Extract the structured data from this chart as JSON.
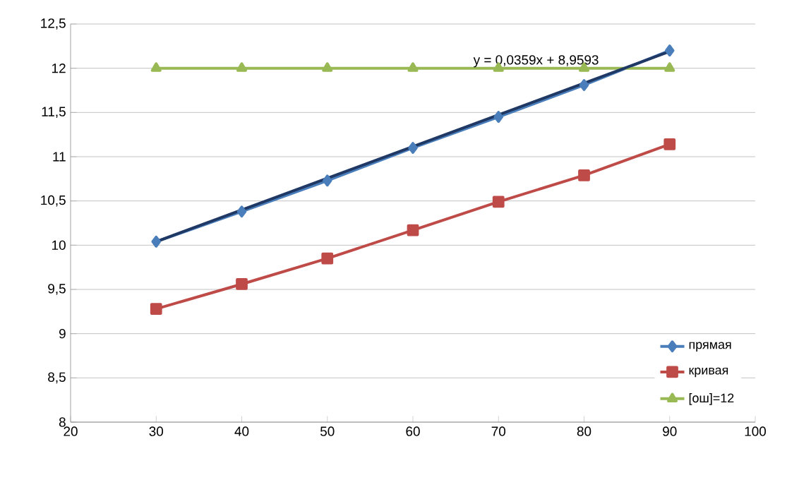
{
  "chart_data": {
    "type": "line",
    "xlim": [
      20,
      100
    ],
    "xticks": [
      20,
      30,
      40,
      50,
      60,
      70,
      80,
      90,
      100
    ],
    "ylim": [
      8,
      12.5
    ],
    "yticks": [
      8,
      {
        "value": 8.5,
        "label": "8,5"
      },
      9,
      {
        "value": 9.5,
        "label": "9,5"
      },
      10,
      {
        "value": 10.5,
        "label": "10,5"
      },
      11,
      {
        "value": 11.5,
        "label": "11,5"
      },
      12,
      {
        "value": 12.5,
        "label": "12,5"
      }
    ],
    "grid": "y",
    "legend": "bottom right",
    "series": [
      {
        "name": "прямая",
        "color": "#4a7ebb",
        "marker": "diamond",
        "x": [
          30,
          40,
          50,
          60,
          70,
          80,
          90
        ],
        "values": [
          10.04,
          10.38,
          10.73,
          11.1,
          11.45,
          11.81,
          12.2
        ]
      },
      {
        "name": "кривая",
        "color": "#be4b48",
        "marker": "square",
        "x": [
          30,
          40,
          50,
          60,
          70,
          80,
          90
        ],
        "values": [
          9.28,
          9.56,
          9.85,
          10.17,
          10.49,
          10.79,
          11.14
        ]
      },
      {
        "name": "[ош]=12",
        "color": "#98b954",
        "marker": "triangle",
        "x": [
          30,
          40,
          50,
          60,
          70,
          80,
          90
        ],
        "values": [
          12,
          12,
          12,
          12,
          12,
          12,
          12
        ]
      },
      {
        "color": "#1f3864",
        "marker": "none",
        "x": [
          30,
          90
        ],
        "values": [
          10.04,
          12.19
        ]
      }
    ],
    "annotations": [
      "y = 0,0359x + 8,9593"
    ]
  }
}
